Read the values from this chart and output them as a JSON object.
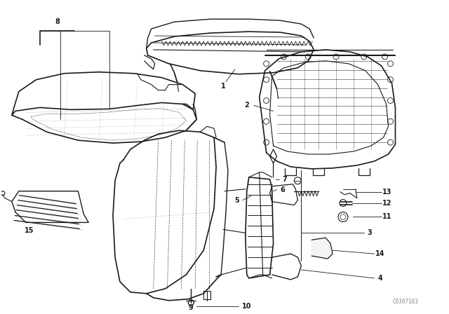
{
  "background_color": "#ffffff",
  "line_color": "#1a1a1a",
  "watermark": "C0307163",
  "figsize": [
    6.4,
    4.48
  ],
  "dpi": 100
}
